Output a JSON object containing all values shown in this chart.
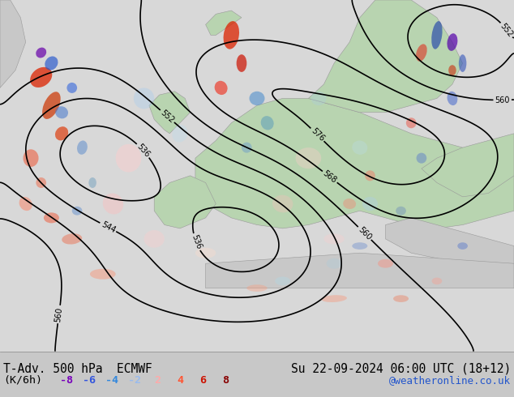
{
  "title_left": "T-Adv. 500 hPa  ECMWF",
  "title_right": "Su 22-09-2024 06:00 UTC (18+12)",
  "subtitle_left": "(K/6h)",
  "neg_labels": [
    "-8",
    "-6",
    "-4",
    "-2"
  ],
  "pos_labels": [
    "2",
    "4",
    "6",
    "8"
  ],
  "neg_colors": [
    "#7700bb",
    "#3355dd",
    "#3388dd",
    "#99bbee"
  ],
  "pos_colors": [
    "#ffaaaa",
    "#ff5533",
    "#cc1100",
    "#880000"
  ],
  "website": "@weatheronline.co.uk",
  "label_bar_bg": "#c8c8c8",
  "fig_width": 6.34,
  "fig_height": 4.9,
  "dpi": 100,
  "map_bg_ocean": "#dcdcdc",
  "map_bg_land_green": "#b8d8b0",
  "map_bg_land_gray": "#c8c8c8"
}
